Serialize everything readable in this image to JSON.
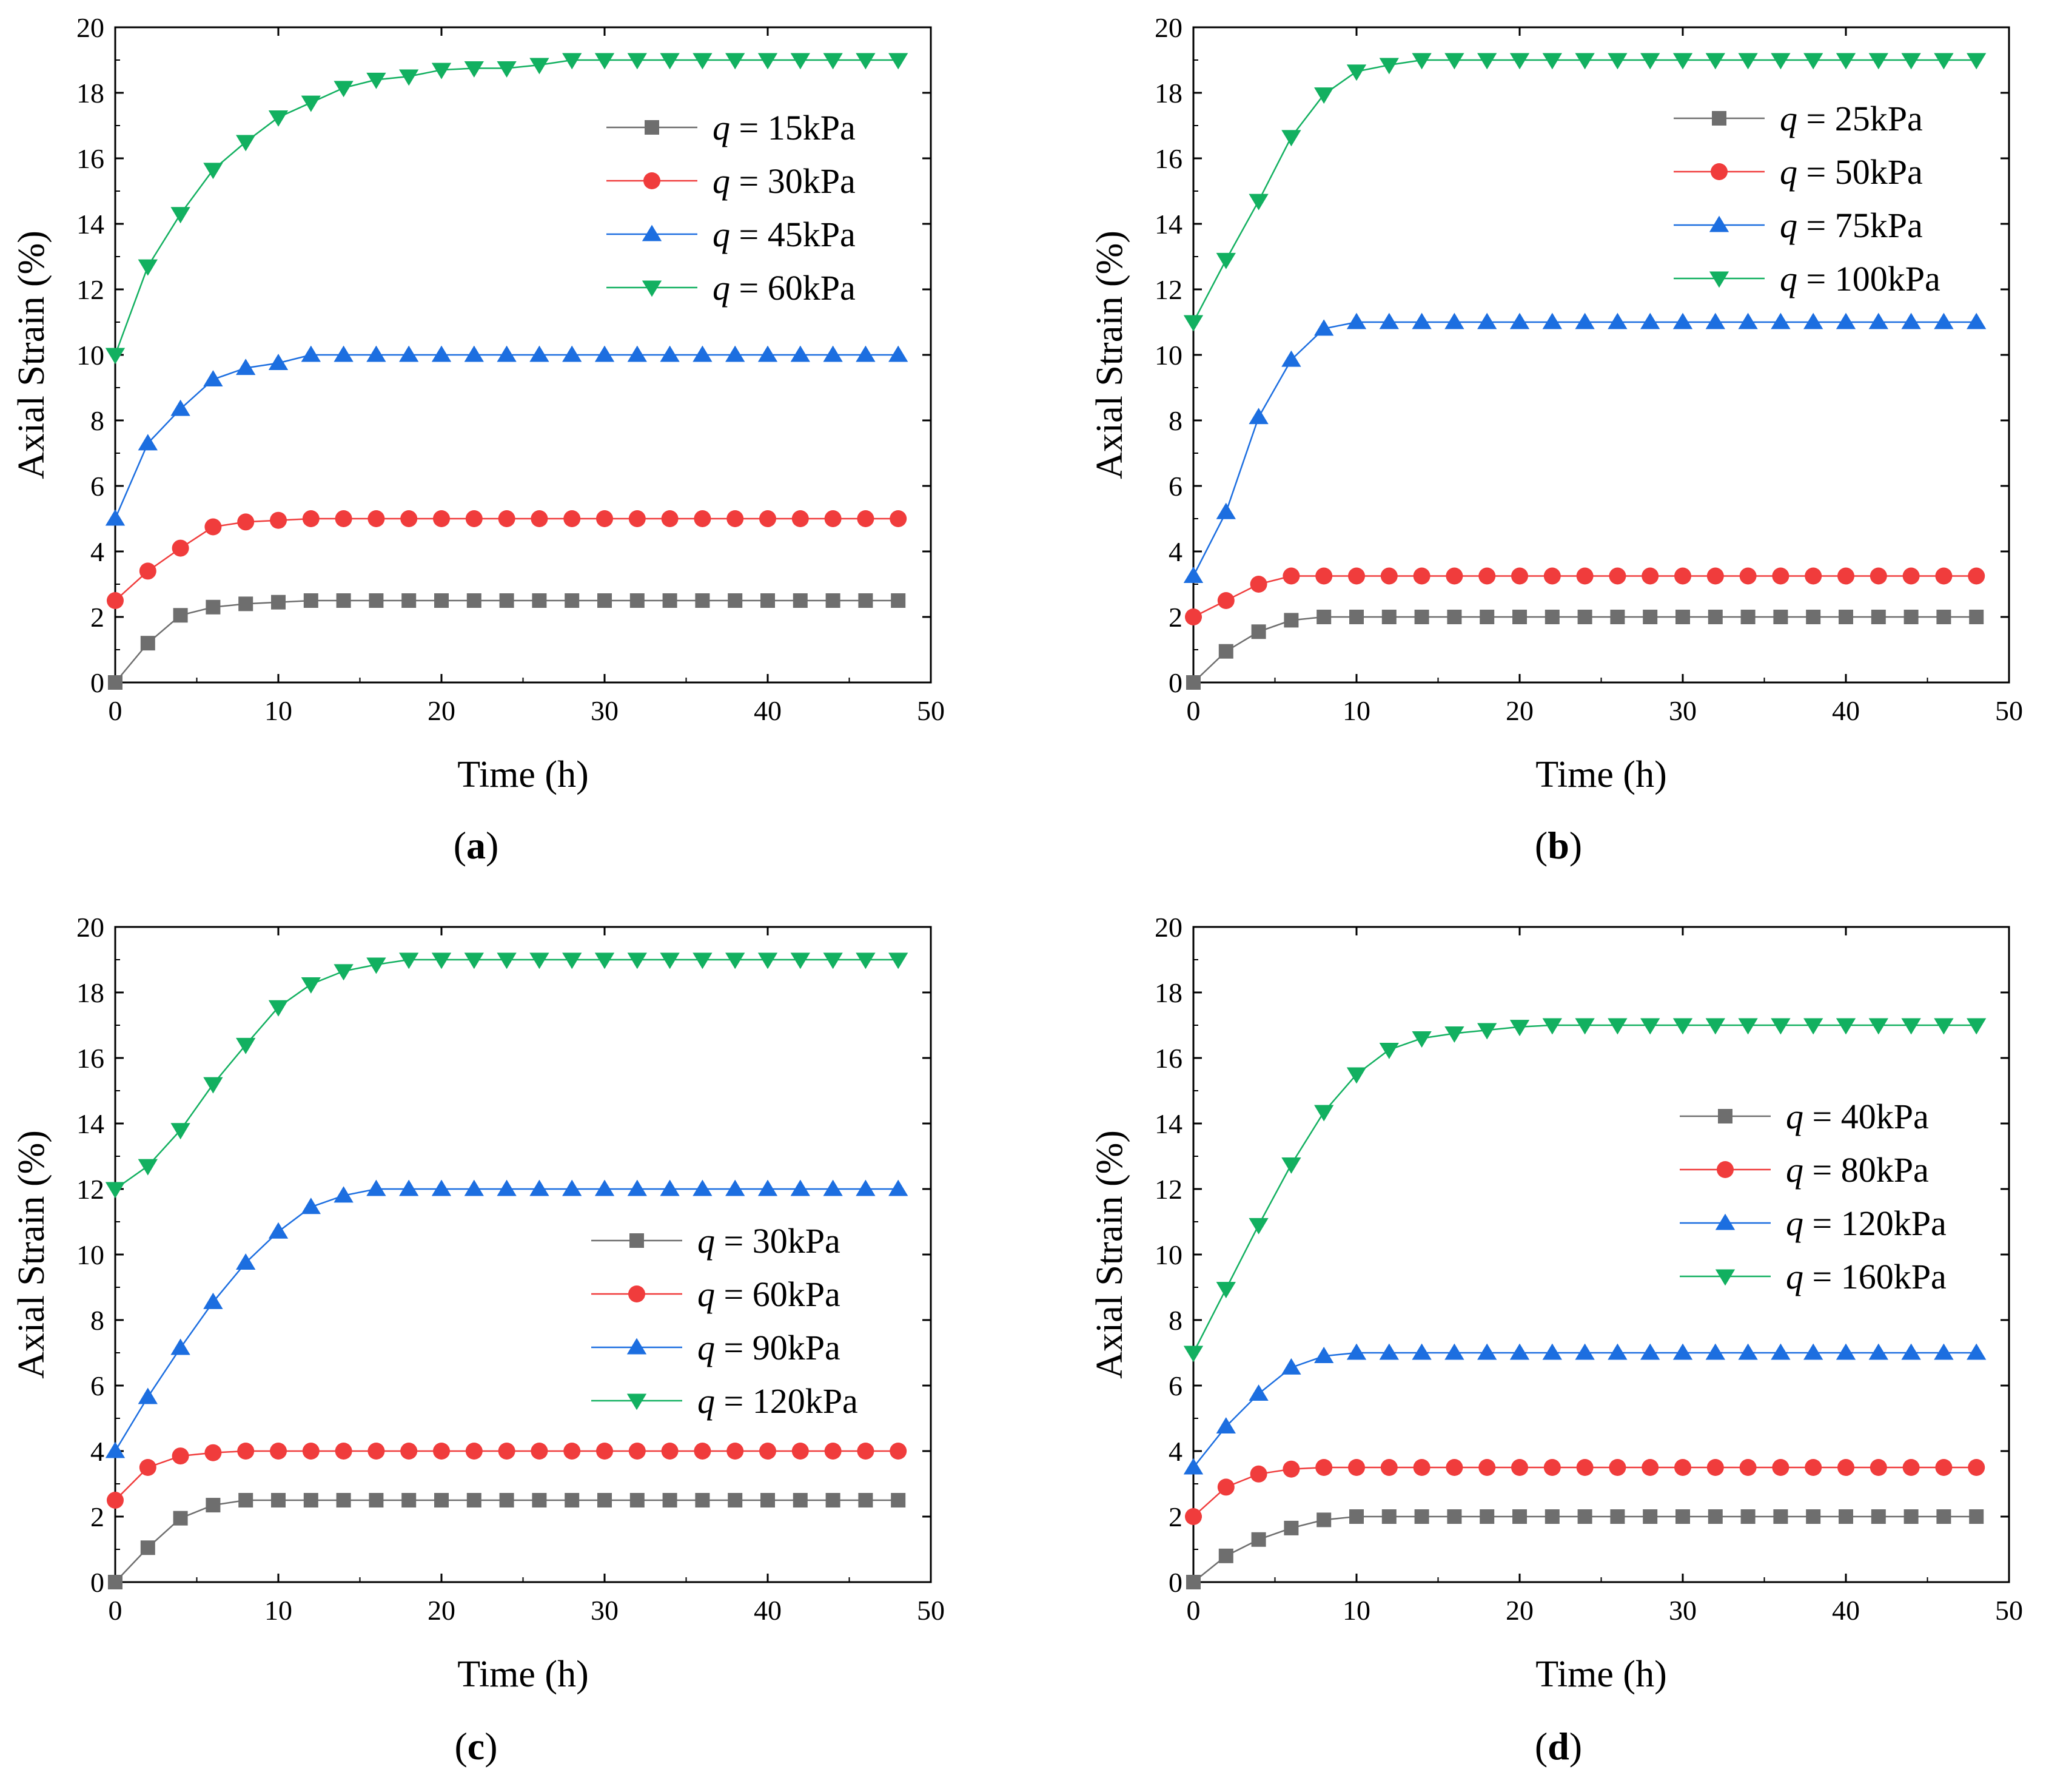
{
  "colors": {
    "s1": "#6e6e6e",
    "s2": "#f03c3c",
    "s3": "#1c6ee0",
    "s4": "#12b060"
  },
  "chart_data": [
    {
      "type": "line",
      "caption_open": "(",
      "caption": "a",
      "caption_close": ")",
      "xlabel": "Time (h)",
      "ylabel": "Axial Strain (%)",
      "xlim": [
        0,
        50
      ],
      "ylim": [
        0,
        20
      ],
      "xticks": [
        0,
        10,
        20,
        30,
        40,
        50
      ],
      "yticks": [
        0,
        2,
        4,
        6,
        8,
        10,
        12,
        14,
        16,
        18,
        20
      ],
      "legend_position": "upper-right",
      "x": [
        0,
        2,
        4,
        6,
        8,
        10,
        12,
        14,
        16,
        18,
        20,
        22,
        24,
        26,
        28,
        30,
        32,
        34,
        36,
        38,
        40,
        42,
        44,
        46,
        48
      ],
      "series": [
        {
          "var": "q",
          "label": " = 15kPa",
          "marker": "square",
          "color_key": "s1",
          "values": [
            0,
            1.2,
            2.05,
            2.3,
            2.4,
            2.45,
            2.5,
            2.5,
            2.5,
            2.5,
            2.5,
            2.5,
            2.5,
            2.5,
            2.5,
            2.5,
            2.5,
            2.5,
            2.5,
            2.5,
            2.5,
            2.5,
            2.5,
            2.5,
            2.5
          ]
        },
        {
          "var": "q",
          "label": " = 30kPa",
          "marker": "circle",
          "color_key": "s2",
          "values": [
            2.5,
            3.4,
            4.1,
            4.75,
            4.9,
            4.95,
            5,
            5,
            5,
            5,
            5,
            5,
            5,
            5,
            5,
            5,
            5,
            5,
            5,
            5,
            5,
            5,
            5,
            5,
            5
          ]
        },
        {
          "var": "q",
          "label": " = 45kPa",
          "marker": "triangle-up",
          "color_key": "s3",
          "values": [
            5,
            7.3,
            8.35,
            9.25,
            9.6,
            9.75,
            10,
            10,
            10,
            10,
            10,
            10,
            10,
            10,
            10,
            10,
            10,
            10,
            10,
            10,
            10,
            10,
            10,
            10,
            10
          ]
        },
        {
          "var": "q",
          "label": " = 60kPa",
          "marker": "triangle-down",
          "color_key": "s4",
          "values": [
            10,
            12.7,
            14.3,
            15.65,
            16.5,
            17.25,
            17.7,
            18.15,
            18.4,
            18.5,
            18.7,
            18.75,
            18.75,
            18.85,
            19,
            19,
            19,
            19,
            19,
            19,
            19,
            19,
            19,
            19,
            19
          ]
        }
      ]
    },
    {
      "type": "line",
      "caption_open": "(",
      "caption": "b",
      "caption_close": ")",
      "xlabel": "Time (h)",
      "ylabel": "Axial Strain (%)",
      "xlim": [
        0,
        50
      ],
      "ylim": [
        0,
        20
      ],
      "xticks": [
        0,
        10,
        20,
        30,
        40,
        50
      ],
      "yticks": [
        0,
        2,
        4,
        6,
        8,
        10,
        12,
        14,
        16,
        18,
        20
      ],
      "legend_position": "upper-right",
      "x": [
        0,
        2,
        4,
        6,
        8,
        10,
        12,
        14,
        16,
        18,
        20,
        22,
        24,
        26,
        28,
        30,
        32,
        34,
        36,
        38,
        40,
        42,
        44,
        46,
        48
      ],
      "series": [
        {
          "var": "q",
          "label": " = 25kPa",
          "marker": "square",
          "color_key": "s1",
          "values": [
            0,
            0.95,
            1.55,
            1.9,
            2,
            2,
            2,
            2,
            2,
            2,
            2,
            2,
            2,
            2,
            2,
            2,
            2,
            2,
            2,
            2,
            2,
            2,
            2,
            2,
            2
          ]
        },
        {
          "var": "q",
          "label": " = 50kPa",
          "marker": "circle",
          "color_key": "s2",
          "values": [
            2,
            2.5,
            3,
            3.25,
            3.25,
            3.25,
            3.25,
            3.25,
            3.25,
            3.25,
            3.25,
            3.25,
            3.25,
            3.25,
            3.25,
            3.25,
            3.25,
            3.25,
            3.25,
            3.25,
            3.25,
            3.25,
            3.25,
            3.25,
            3.25
          ]
        },
        {
          "var": "q",
          "label": " = 75kPa",
          "marker": "triangle-up",
          "color_key": "s3",
          "values": [
            3.25,
            5.2,
            8.1,
            9.85,
            10.8,
            11,
            11,
            11,
            11,
            11,
            11,
            11,
            11,
            11,
            11,
            11,
            11,
            11,
            11,
            11,
            11,
            11,
            11,
            11,
            11
          ]
        },
        {
          "var": "q",
          "label": " = 100kPa",
          "marker": "triangle-down",
          "color_key": "s4",
          "values": [
            11,
            12.9,
            14.7,
            16.65,
            17.95,
            18.65,
            18.85,
            19,
            19,
            19,
            19,
            19,
            19,
            19,
            19,
            19,
            19,
            19,
            19,
            19,
            19,
            19,
            19,
            19,
            19
          ]
        }
      ]
    },
    {
      "type": "line",
      "caption_open": "(",
      "caption": "c",
      "caption_close": ")",
      "xlabel": "Time (h)",
      "ylabel": "Axial Strain (%)",
      "xlim": [
        0,
        50
      ],
      "ylim": [
        0,
        20
      ],
      "xticks": [
        0,
        10,
        20,
        30,
        40,
        50
      ],
      "yticks": [
        0,
        2,
        4,
        6,
        8,
        10,
        12,
        14,
        16,
        18,
        20
      ],
      "legend_position": "center-right",
      "x": [
        0,
        2,
        4,
        6,
        8,
        10,
        12,
        14,
        16,
        18,
        20,
        22,
        24,
        26,
        28,
        30,
        32,
        34,
        36,
        38,
        40,
        42,
        44,
        46,
        48
      ],
      "series": [
        {
          "var": "q",
          "label": " = 30kPa",
          "marker": "square",
          "color_key": "s1",
          "values": [
            0,
            1.05,
            1.95,
            2.35,
            2.5,
            2.5,
            2.5,
            2.5,
            2.5,
            2.5,
            2.5,
            2.5,
            2.5,
            2.5,
            2.5,
            2.5,
            2.5,
            2.5,
            2.5,
            2.5,
            2.5,
            2.5,
            2.5,
            2.5,
            2.5
          ]
        },
        {
          "var": "q",
          "label": " = 60kPa",
          "marker": "circle",
          "color_key": "s2",
          "values": [
            2.5,
            3.5,
            3.85,
            3.95,
            4,
            4,
            4,
            4,
            4,
            4,
            4,
            4,
            4,
            4,
            4,
            4,
            4,
            4,
            4,
            4,
            4,
            4,
            4,
            4,
            4
          ]
        },
        {
          "var": "q",
          "label": " = 90kPa",
          "marker": "triangle-up",
          "color_key": "s3",
          "values": [
            4,
            5.65,
            7.15,
            8.55,
            9.75,
            10.7,
            11.45,
            11.8,
            12,
            12,
            12,
            12,
            12,
            12,
            12,
            12,
            12,
            12,
            12,
            12,
            12,
            12,
            12,
            12,
            12
          ]
        },
        {
          "var": "q",
          "label": " = 120kPa",
          "marker": "triangle-down",
          "color_key": "s4",
          "values": [
            12,
            12.7,
            13.8,
            15.2,
            16.4,
            17.55,
            18.25,
            18.65,
            18.85,
            19,
            19,
            19,
            19,
            19,
            19,
            19,
            19,
            19,
            19,
            19,
            19,
            19,
            19,
            19,
            19
          ]
        }
      ]
    },
    {
      "type": "line",
      "caption_open": "(",
      "caption": "d",
      "caption_close": ")",
      "xlabel": "Time (h)",
      "ylabel": "Axial Strain (%)",
      "xlim": [
        0,
        50
      ],
      "ylim": [
        0,
        20
      ],
      "xticks": [
        0,
        10,
        20,
        30,
        40,
        50
      ],
      "yticks": [
        0,
        2,
        4,
        6,
        8,
        10,
        12,
        14,
        16,
        18,
        20
      ],
      "legend_position": "center-right",
      "x": [
        0,
        2,
        4,
        6,
        8,
        10,
        12,
        14,
        16,
        18,
        20,
        22,
        24,
        26,
        28,
        30,
        32,
        34,
        36,
        38,
        40,
        42,
        44,
        46,
        48
      ],
      "series": [
        {
          "var": "q",
          "label": " = 40kPa",
          "marker": "square",
          "color_key": "s1",
          "values": [
            0,
            0.8,
            1.3,
            1.65,
            1.9,
            2,
            2,
            2,
            2,
            2,
            2,
            2,
            2,
            2,
            2,
            2,
            2,
            2,
            2,
            2,
            2,
            2,
            2,
            2,
            2
          ]
        },
        {
          "var": "q",
          "label": " = 80kPa",
          "marker": "circle",
          "color_key": "s2",
          "values": [
            2,
            2.9,
            3.3,
            3.45,
            3.5,
            3.5,
            3.5,
            3.5,
            3.5,
            3.5,
            3.5,
            3.5,
            3.5,
            3.5,
            3.5,
            3.5,
            3.5,
            3.5,
            3.5,
            3.5,
            3.5,
            3.5,
            3.5,
            3.5,
            3.5
          ]
        },
        {
          "var": "q",
          "label": " = 120kPa",
          "marker": "triangle-up",
          "color_key": "s3",
          "values": [
            3.5,
            4.75,
            5.75,
            6.55,
            6.9,
            7,
            7,
            7,
            7,
            7,
            7,
            7,
            7,
            7,
            7,
            7,
            7,
            7,
            7,
            7,
            7,
            7,
            7,
            7,
            7
          ]
        },
        {
          "var": "q",
          "label": " = 160kPa",
          "marker": "triangle-down",
          "color_key": "s4",
          "values": [
            7,
            8.95,
            10.9,
            12.75,
            14.35,
            15.5,
            16.25,
            16.6,
            16.75,
            16.85,
            16.95,
            17,
            17,
            17,
            17,
            17,
            17,
            17,
            17,
            17,
            17,
            17,
            17,
            17,
            17
          ]
        }
      ]
    }
  ]
}
